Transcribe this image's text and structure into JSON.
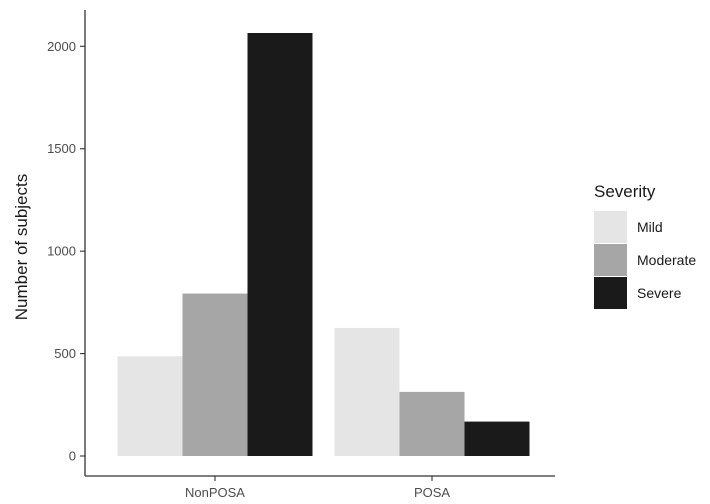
{
  "chart_data": {
    "type": "bar",
    "categories": [
      "NonPOSA",
      "POSA"
    ],
    "series": [
      {
        "name": "Mild",
        "values": [
          487,
          625
        ],
        "color": "#e5e5e5"
      },
      {
        "name": "Moderate",
        "values": [
          793,
          313
        ],
        "color": "#a6a6a6"
      },
      {
        "name": "Severe",
        "values": [
          2065,
          168
        ],
        "color": "#1a1a1a"
      }
    ],
    "xlabel": "",
    "ylabel": "Number of subjects",
    "ylim": [
      0,
      2100
    ],
    "yticks": [
      0,
      500,
      1000,
      1500,
      2000
    ],
    "legend": {
      "title": "Severity",
      "position": "right"
    },
    "grid": false
  }
}
